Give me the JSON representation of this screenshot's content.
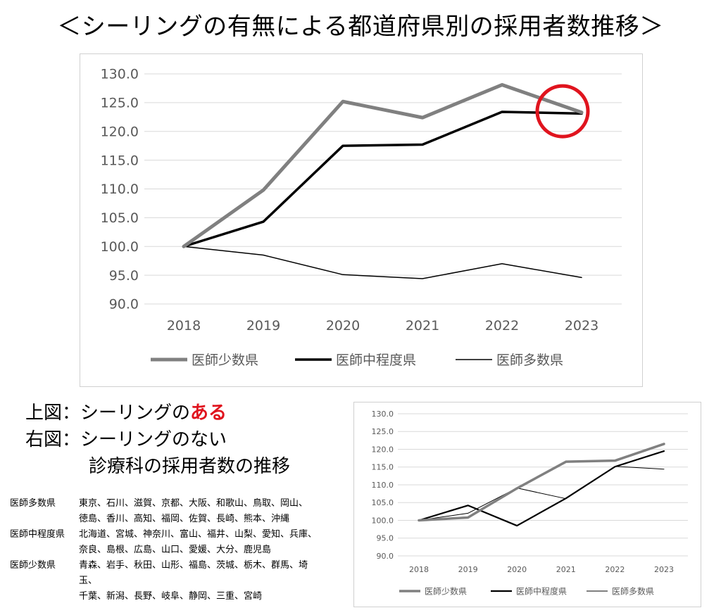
{
  "title": "＜シーリングの有無による都道府県別の採用者数推移＞",
  "chart_data": [
    {
      "type": "line",
      "title": "シーリングのある診療科の採用者数の推移",
      "categories": [
        "2018",
        "2019",
        "2020",
        "2021",
        "2022",
        "2023"
      ],
      "ylim": [
        90,
        130
      ],
      "yticks": [
        "130.0",
        "125.0",
        "120.0",
        "115.0",
        "110.0",
        "105.0",
        "100.0",
        "95.0",
        "90.0"
      ],
      "series": [
        {
          "name": "医師少数県",
          "values": [
            100.0,
            109.8,
            125.2,
            122.4,
            128.1,
            123.3
          ],
          "color": "#808080",
          "style": "thick"
        },
        {
          "name": "医師中程度県",
          "values": [
            100.0,
            104.3,
            117.5,
            117.7,
            123.4,
            123.1
          ],
          "color": "#000000",
          "style": "medium"
        },
        {
          "name": "医師多数県",
          "values": [
            100.0,
            98.5,
            95.1,
            94.4,
            97.0,
            94.6
          ],
          "color": "#000000",
          "style": "thin"
        }
      ],
      "annotation": {
        "type": "circle",
        "category": "2023",
        "value": 123.5,
        "color": "#e0141e"
      },
      "legend": "bottom"
    },
    {
      "type": "line",
      "title": "シーリングのない診療科の採用者数の推移",
      "categories": [
        "2018",
        "2019",
        "2020",
        "2021",
        "2022",
        "2023"
      ],
      "ylim": [
        90,
        130
      ],
      "yticks": [
        "130.0",
        "125.0",
        "120.0",
        "115.0",
        "110.0",
        "105.0",
        "100.0",
        "95.0",
        "90.0"
      ],
      "series": [
        {
          "name": "医師少数県",
          "values": [
            100.0,
            100.8,
            109.0,
            116.5,
            116.8,
            121.5
          ],
          "color": "#808080",
          "style": "thick"
        },
        {
          "name": "医師中程度県",
          "values": [
            100.0,
            104.2,
            98.5,
            106.2,
            115.1,
            119.5
          ],
          "color": "#000000",
          "style": "medium"
        },
        {
          "name": "医師多数県",
          "values": [
            100.0,
            102.0,
            109.1,
            106.1,
            115.2,
            114.4
          ],
          "color": "#000000",
          "style": "thin"
        }
      ],
      "legend": "bottom"
    }
  ],
  "captions": {
    "upper_prefix": "上図：シーリングの",
    "upper_accent": "ある",
    "right_prefix": "右図：シーリングのない",
    "common_suffix": "診療科の採用者数の推移"
  },
  "prefecture_groups": [
    {
      "label": "医師多数県",
      "lines": [
        "東京、石川、滋賀、京都、大阪、和歌山、鳥取、岡山、",
        "徳島、香川、高知、福岡、佐賀、長崎、熊本、沖縄"
      ]
    },
    {
      "label": "医師中程度県",
      "lines": [
        "北海道、宮城、神奈川、富山、福井、山梨、愛知、兵庫、",
        "奈良、島根、広島、山口、愛媛、大分、鹿児島"
      ]
    },
    {
      "label": "医師少数県",
      "lines": [
        "青森、岩手、秋田、山形、福島、茨城、栃木、群馬、埼玉、",
        "千葉、新潟、長野、岐阜、静岡、三重、宮崎"
      ]
    }
  ]
}
